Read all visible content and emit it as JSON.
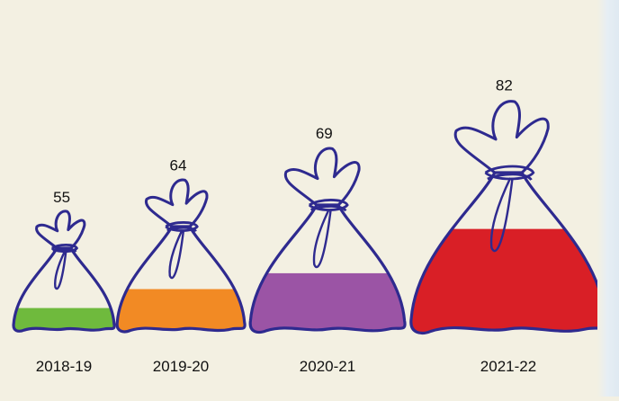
{
  "chart_data": {
    "type": "bar",
    "title": "",
    "xlabel": "",
    "ylabel": "",
    "categories": [
      "2018-19",
      "2019-20",
      "2020-21",
      "2021-22"
    ],
    "values": [
      55,
      64,
      69,
      82
    ],
    "colors": [
      "#6fba3d",
      "#f28a24",
      "#9b54a5",
      "#d91f26"
    ],
    "fill_levels": [
      0.26,
      0.39,
      0.45,
      0.64
    ],
    "outline_color": "#2e2a8f",
    "background_color": "#f3f0e2",
    "style": "pictograph-bags"
  }
}
